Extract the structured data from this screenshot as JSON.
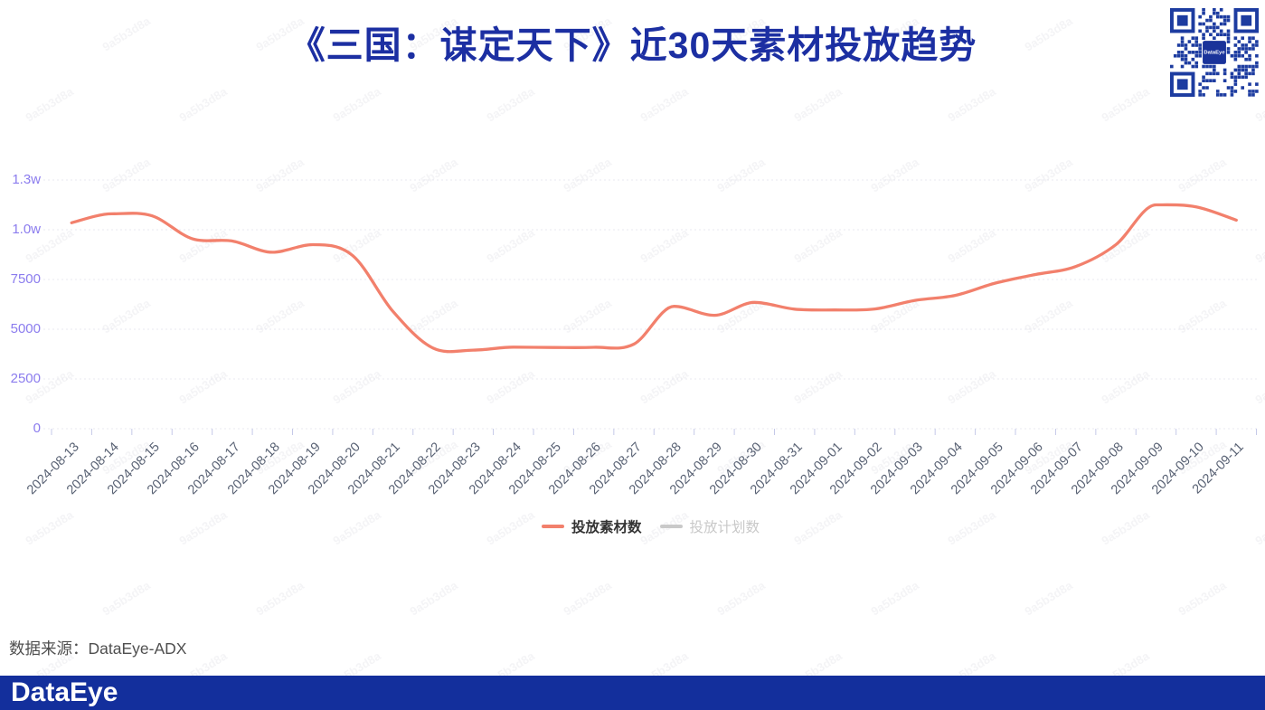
{
  "title": "《三国：谋定天下》近30天素材投放趋势",
  "qr": {
    "center_label": "DataEye"
  },
  "chart_data": {
    "type": "line",
    "title": "《三国：谋定天下》近30天素材投放趋势",
    "x": [
      "2024-08-13",
      "2024-08-14",
      "2024-08-15",
      "2024-08-16",
      "2024-08-17",
      "2024-08-18",
      "2024-08-19",
      "2024-08-20",
      "2024-08-21",
      "2024-08-22",
      "2024-08-23",
      "2024-08-24",
      "2024-08-25",
      "2024-08-26",
      "2024-08-27",
      "2024-08-28",
      "2024-08-29",
      "2024-08-30",
      "2024-08-31",
      "2024-09-01",
      "2024-09-02",
      "2024-09-03",
      "2024-09-04",
      "2024-09-05",
      "2024-09-06",
      "2024-09-07",
      "2024-09-08",
      "2024-09-09",
      "2024-09-10",
      "2024-09-11"
    ],
    "series": [
      {
        "name": "投放素材数",
        "color": "#f2806c",
        "visible": true,
        "values": [
          10350,
          10800,
          10700,
          9550,
          9430,
          8870,
          9250,
          8700,
          5900,
          4050,
          3950,
          4100,
          4080,
          4090,
          4250,
          6150,
          5700,
          6350,
          6010,
          5970,
          6020,
          6450,
          6700,
          7320,
          7750,
          8150,
          9250,
          11250,
          11150,
          10480
        ]
      },
      {
        "name": "投放计划数",
        "color": "#c9c9c9",
        "visible": false,
        "values": []
      }
    ],
    "xlabel": "",
    "ylabel": "",
    "ylim": [
      0,
      12500
    ],
    "y_interval": 2500,
    "y_ticks": [
      "0",
      "2500",
      "5000",
      "7500",
      "1.0w",
      "1.3w"
    ],
    "grid": true,
    "grid_style": "dotted",
    "legend_position": "bottom",
    "smooth": true
  },
  "legend": {
    "items": [
      {
        "label": "投放素材数",
        "color": "#f2806c",
        "active": true
      },
      {
        "label": "投放计划数",
        "color": "#c9c9c9",
        "active": false
      }
    ]
  },
  "source_note": "数据来源：DataEye-ADX",
  "footer_logo": "DataEye",
  "watermark": "9a5b3d8a",
  "colors": {
    "title": "#1c2fa2",
    "line": "#f2806c",
    "y_label": "#8b7cee",
    "x_label": "#596274",
    "grid_line": "#e8e8f0",
    "axis_tick": "#c5c9e8",
    "footer_bar": "#132f9c",
    "qr_blue": "#1d3ca0"
  }
}
